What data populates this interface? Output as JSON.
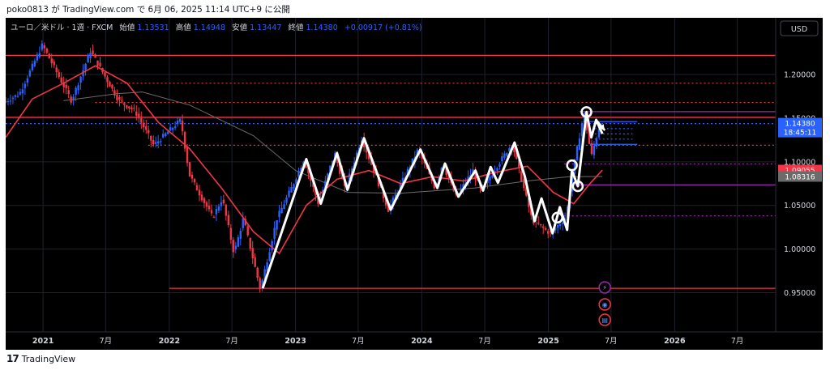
{
  "header": {
    "caption": "poko0813 が TradingView.com で 6月 06, 2025 11:14 UTC+9 に公開"
  },
  "footer": {
    "brand": "TradingView",
    "logo_text": "17"
  },
  "currency_button": "USD",
  "legend": {
    "symbol": "ユーロ／米ドル · 1週 · FXCM",
    "open_label": "始値",
    "open": "1.13531",
    "high_label": "高値",
    "high": "1.14948",
    "low_label": "安値",
    "low": "1.13447",
    "close_label": "終値",
    "close": "1.14380",
    "change": "+0.00917 (+0.81%)"
  },
  "colors": {
    "background": "#000000",
    "bull": "#2962ff",
    "bear": "#f23645",
    "ma_fast": "#f23645",
    "ma_slow": "#787b86",
    "zigzag": "#ffffff",
    "price_tag": "#2962ff",
    "ma_tag": "#f23645",
    "purple": "#9c27b0"
  },
  "price_tags": [
    {
      "value": "1.14380",
      "sub": "18:45:11",
      "color": "#2962ff"
    },
    {
      "value": "1.09055",
      "color": "#f23645"
    },
    {
      "value": "1.08316",
      "color": "#6b6b6b"
    }
  ],
  "event_icons": [
    "lightning-icon",
    "globe-icon",
    "us-flag-icon"
  ],
  "chart_data": {
    "type": "candlestick",
    "symbol": "EUR/USD",
    "timeframe": "1W",
    "ylim": [
      0.905,
      1.265
    ],
    "xlim": [
      "2020-09-15",
      "2026-10-20"
    ],
    "y_ticks": [
      "0.95000",
      "1.00000",
      "1.05000",
      "1.10000",
      "1.15000",
      "1.20000"
    ],
    "x_ticks": [
      {
        "label": "2021",
        "date": "2021-01-01"
      },
      {
        "label": "7月",
        "date": "2021-07-01"
      },
      {
        "label": "2022",
        "date": "2022-01-01"
      },
      {
        "label": "7月",
        "date": "2022-07-01"
      },
      {
        "label": "2023",
        "date": "2023-01-01"
      },
      {
        "label": "7月",
        "date": "2023-07-01"
      },
      {
        "label": "2024",
        "date": "2024-01-01"
      },
      {
        "label": "7月",
        "date": "2024-07-01"
      },
      {
        "label": "2025",
        "date": "2025-01-01"
      },
      {
        "label": "7月",
        "date": "2025-07-01"
      },
      {
        "label": "2026",
        "date": "2026-01-01"
      },
      {
        "label": "7月",
        "date": "2026-07-01"
      }
    ],
    "price_path": [
      [
        "2020-09-15",
        1.168
      ],
      [
        "2020-11-01",
        1.178
      ],
      [
        "2021-01-06",
        1.234
      ],
      [
        "2021-03-31",
        1.17
      ],
      [
        "2021-05-25",
        1.227
      ],
      [
        "2021-08-15",
        1.17
      ],
      [
        "2021-10-01",
        1.158
      ],
      [
        "2021-11-24",
        1.119
      ],
      [
        "2022-02-10",
        1.148
      ],
      [
        "2022-03-07",
        1.085
      ],
      [
        "2022-05-13",
        1.036
      ],
      [
        "2022-06-10",
        1.058
      ],
      [
        "2022-07-14",
        0.995
      ],
      [
        "2022-08-10",
        1.035
      ],
      [
        "2022-09-28",
        0.954
      ],
      [
        "2022-11-15",
        1.035
      ],
      [
        "2023-01-02",
        1.075
      ],
      [
        "2023-02-01",
        1.103
      ],
      [
        "2023-03-15",
        1.052
      ],
      [
        "2023-05-01",
        1.11
      ],
      [
        "2023-05-31",
        1.068
      ],
      [
        "2023-07-18",
        1.127
      ],
      [
        "2023-10-03",
        1.045
      ],
      [
        "2023-12-28",
        1.114
      ],
      [
        "2024-02-15",
        1.07
      ],
      [
        "2024-03-08",
        1.098
      ],
      [
        "2024-04-16",
        1.06
      ],
      [
        "2024-06-04",
        1.09
      ],
      [
        "2024-06-26",
        1.067
      ],
      [
        "2024-09-25",
        1.121
      ],
      [
        "2024-11-22",
        1.033
      ],
      [
        "2025-01-13",
        1.018
      ],
      [
        "2025-02-28",
        1.037
      ],
      [
        "2025-03-20",
        1.09
      ],
      [
        "2025-04-21",
        1.157
      ],
      [
        "2025-05-12",
        1.106
      ],
      [
        "2025-06-06",
        1.1438
      ]
    ],
    "zigzag": [
      [
        "2022-09-28",
        0.955
      ],
      [
        "2023-02-01",
        1.103
      ],
      [
        "2023-03-15",
        1.052
      ],
      [
        "2023-05-01",
        1.11
      ],
      [
        "2023-05-31",
        1.068
      ],
      [
        "2023-07-18",
        1.127
      ],
      [
        "2023-10-03",
        1.045
      ],
      [
        "2023-12-28",
        1.114
      ],
      [
        "2024-02-15",
        1.07
      ],
      [
        "2024-03-08",
        1.098
      ],
      [
        "2024-04-16",
        1.06
      ],
      [
        "2024-06-04",
        1.09
      ],
      [
        "2024-06-26",
        1.067
      ],
      [
        "2024-07-18",
        1.094
      ],
      [
        "2024-08-08",
        1.076
      ],
      [
        "2024-09-25",
        1.122
      ],
      [
        "2024-10-25",
        1.083
      ],
      [
        "2024-11-22",
        1.032
      ],
      [
        "2024-12-12",
        1.058
      ],
      [
        "2025-01-13",
        1.018
      ],
      [
        "2025-02-03",
        1.048
      ],
      [
        "2025-02-24",
        1.022
      ],
      [
        "2025-03-10",
        1.09
      ],
      [
        "2025-03-27",
        1.072
      ],
      [
        "2025-04-21",
        1.157
      ],
      [
        "2025-05-05",
        1.128
      ],
      [
        "2025-05-19",
        1.148
      ],
      [
        "2025-06-06",
        1.132
      ]
    ],
    "zigzag_arrow": [
      [
        "2025-05-19",
        1.148
      ],
      [
        "2025-06-13",
        1.136
      ]
    ],
    "circles": [
      {
        "date": "2025-04-21",
        "price": 1.157
      },
      {
        "date": "2025-03-10",
        "price": 1.096
      },
      {
        "date": "2025-03-27",
        "price": 1.072
      },
      {
        "date": "2025-01-27",
        "price": 1.036
      }
    ],
    "ma_fast": [
      [
        "2020-09-15",
        1.128
      ],
      [
        "2020-12-01",
        1.172
      ],
      [
        "2021-03-01",
        1.19
      ],
      [
        "2021-06-01",
        1.21
      ],
      [
        "2021-09-01",
        1.19
      ],
      [
        "2021-12-01",
        1.145
      ],
      [
        "2022-03-01",
        1.115
      ],
      [
        "2022-06-01",
        1.07
      ],
      [
        "2022-09-01",
        1.02
      ],
      [
        "2022-11-15",
        0.995
      ],
      [
        "2023-02-01",
        1.05
      ],
      [
        "2023-05-01",
        1.08
      ],
      [
        "2023-08-01",
        1.09
      ],
      [
        "2023-11-01",
        1.075
      ],
      [
        "2024-02-01",
        1.083
      ],
      [
        "2024-05-01",
        1.078
      ],
      [
        "2024-08-01",
        1.088
      ],
      [
        "2024-11-01",
        1.095
      ],
      [
        "2025-01-15",
        1.065
      ],
      [
        "2025-03-15",
        1.052
      ],
      [
        "2025-05-01",
        1.075
      ],
      [
        "2025-06-06",
        1.09055
      ]
    ],
    "ma_slow": [
      [
        "2021-03-01",
        1.17
      ],
      [
        "2021-08-01",
        1.178
      ],
      [
        "2021-10-15",
        1.18
      ],
      [
        "2022-03-01",
        1.165
      ],
      [
        "2022-09-01",
        1.13
      ],
      [
        "2023-01-01",
        1.09
      ],
      [
        "2023-06-01",
        1.065
      ],
      [
        "2023-11-01",
        1.064
      ],
      [
        "2024-06-01",
        1.07
      ],
      [
        "2024-11-01",
        1.078
      ],
      [
        "2025-03-01",
        1.083
      ],
      [
        "2025-06-06",
        1.08316
      ]
    ],
    "hlines": [
      {
        "price": 1.222,
        "from": "2020-09-15",
        "to": "2026-10-20",
        "color": "#f23645",
        "style": "solid"
      },
      {
        "price": 1.19,
        "from": "2021-08-01",
        "to": "2026-10-20",
        "color": "#f23645",
        "style": "dotted"
      },
      {
        "price": 1.168,
        "from": "2021-06-01",
        "to": "2026-10-20",
        "color": "#f23645",
        "style": "dotted"
      },
      {
        "price": 1.1575,
        "from": "2025-04-01",
        "to": "2026-10-20",
        "color": "#9c27b0",
        "style": "solid"
      },
      {
        "price": 1.151,
        "from": "2020-09-15",
        "to": "2026-10-20",
        "color": "#f23645",
        "style": "solid"
      },
      {
        "price": 1.1438,
        "from": "2020-09-15",
        "to": "2026-10-20",
        "color": "#2962ff",
        "style": "dotted"
      },
      {
        "price": 1.119,
        "from": "2021-11-01",
        "to": "2026-10-20",
        "color": "#f23645",
        "style": "dotted"
      },
      {
        "price": 1.0975,
        "from": "2025-02-15",
        "to": "2026-10-20",
        "color": "#9c27b0",
        "style": "dotted"
      },
      {
        "price": 1.0735,
        "from": "2025-03-20",
        "to": "2026-10-20",
        "color": "#9c27b0",
        "style": "solid"
      },
      {
        "price": 1.038,
        "from": "2025-02-15",
        "to": "2026-10-20",
        "color": "#9c27b0",
        "style": "dotted"
      },
      {
        "price": 0.955,
        "from": "2022-01-01",
        "to": "2026-10-20",
        "color": "#f23645",
        "style": "solid"
      },
      {
        "price": 1.146,
        "from": "2025-05-01",
        "to": "2025-09-15",
        "color": "#2962ff",
        "style": "solid"
      },
      {
        "price": 1.138,
        "from": "2025-05-15",
        "to": "2025-09-01",
        "color": "#2962ff",
        "style": "dotted"
      },
      {
        "price": 1.132,
        "from": "2025-05-15",
        "to": "2025-09-01",
        "color": "#2962ff",
        "style": "dotted"
      },
      {
        "price": 1.126,
        "from": "2025-05-15",
        "to": "2025-09-01",
        "color": "#2962ff",
        "style": "dotted"
      },
      {
        "price": 1.12,
        "from": "2025-05-01",
        "to": "2025-09-15",
        "color": "#2962ff",
        "style": "solid"
      }
    ],
    "price_scale_labels": [
      "1.14380",
      "18:45:11",
      "1.09055",
      "1.08316"
    ]
  }
}
